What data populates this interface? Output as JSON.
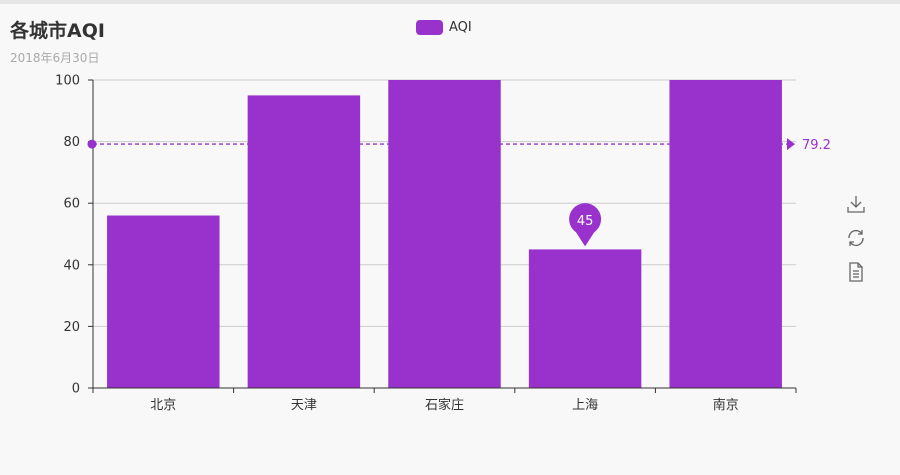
{
  "header": {
    "title": "各城市AQI",
    "subtitle": "2018年6月30日"
  },
  "legend": {
    "label": "AQI"
  },
  "colors": {
    "bar": "#9932CC",
    "axis": "#333333",
    "grid": "#cccccc",
    "text": "#333333"
  },
  "toolbox": {
    "icons": [
      "download-icon",
      "refresh-icon",
      "data-view-icon"
    ]
  },
  "chart_data": {
    "type": "bar",
    "categories": [
      "北京",
      "天津",
      "石家庄",
      "上海",
      "南京"
    ],
    "series": [
      {
        "name": "AQI",
        "values": [
          56,
          95,
          100,
          45,
          100
        ]
      }
    ],
    "ylim": [
      0,
      100
    ],
    "yticks": [
      0,
      20,
      40,
      60,
      80,
      100
    ],
    "mark_line": {
      "type": "average",
      "value": 79.2,
      "label": "79.2"
    },
    "mark_point": {
      "category": "上海",
      "value": 45,
      "label": "45"
    },
    "legend_position": "top-center",
    "grid": true
  }
}
